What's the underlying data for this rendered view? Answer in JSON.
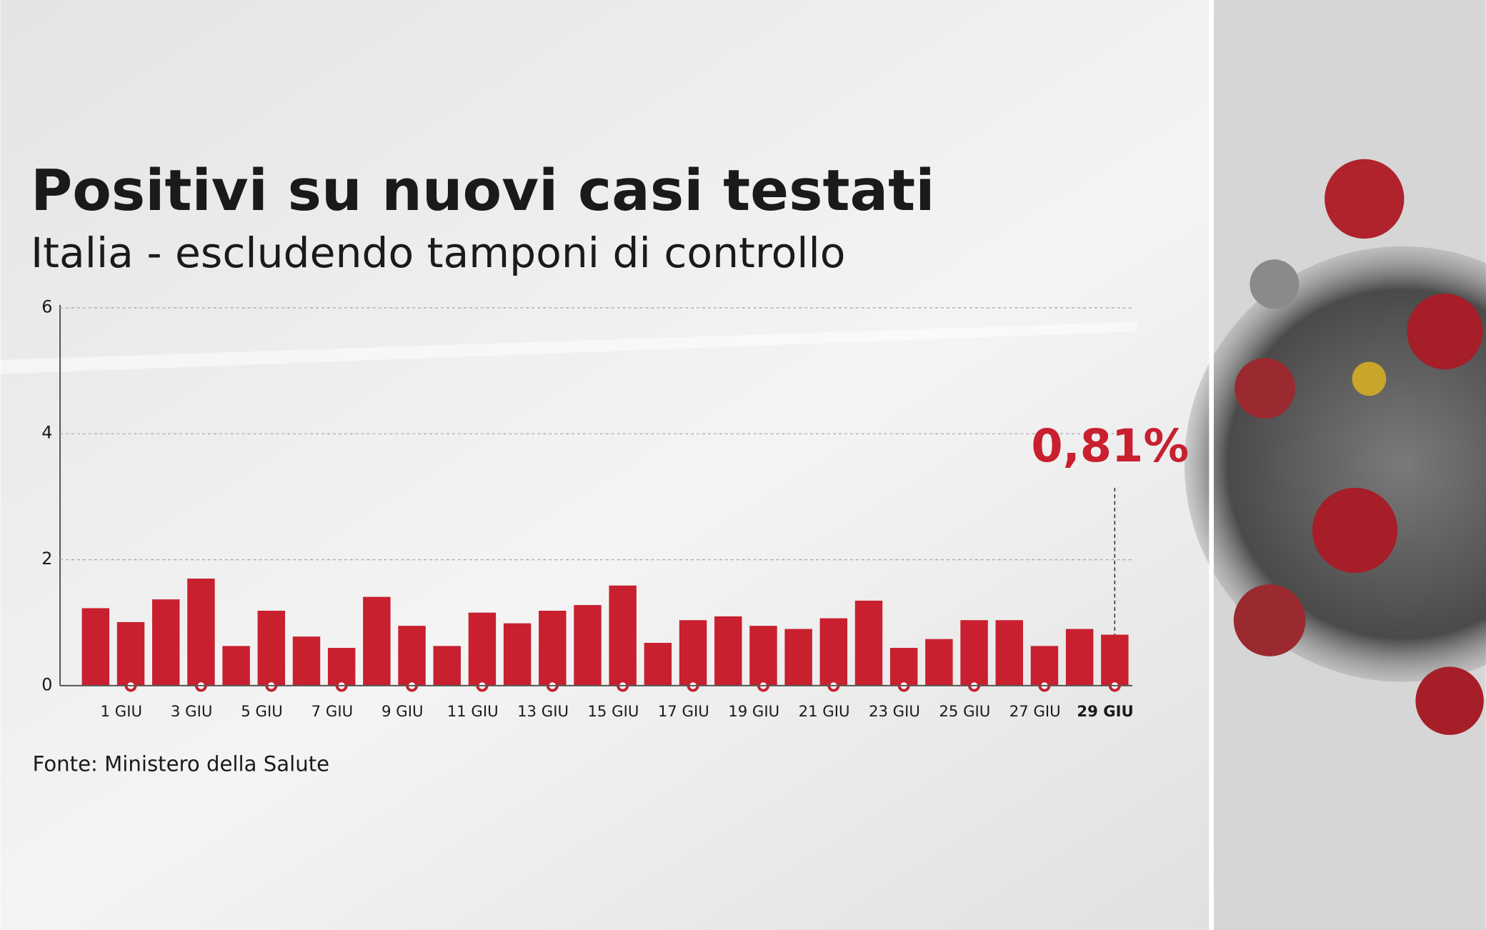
{
  "chart_data": {
    "type": "bar",
    "title": "Positivi su nuovi casi testati",
    "subtitle": "Italia - escludendo tamponi di controllo",
    "source": "Fonte: Ministero della Salute",
    "categories": [
      null,
      "1 GIU",
      null,
      "3 GIU",
      null,
      "5 GIU",
      null,
      "7 GIU",
      null,
      "9 GIU",
      null,
      "11 GIU",
      null,
      "13 GIU",
      null,
      "15 GIU",
      null,
      "17 GIU",
      null,
      "19 GIU",
      null,
      "21 GIU",
      null,
      "23 GIU",
      null,
      "25 GIU",
      null,
      "27 GIU",
      null,
      "29 GIU"
    ],
    "values": [
      1.23,
      1.01,
      1.37,
      1.7,
      0.63,
      1.19,
      0.78,
      0.6,
      1.41,
      0.95,
      0.63,
      1.16,
      0.99,
      1.19,
      1.28,
      1.59,
      0.68,
      1.04,
      1.1,
      0.95,
      0.9,
      1.07,
      1.35,
      0.6,
      0.74,
      1.04,
      1.04,
      0.63,
      0.9,
      0.81
    ],
    "value_labels": [
      null,
      null,
      null,
      null,
      null,
      null,
      null,
      null,
      null,
      null,
      null,
      null,
      null,
      null,
      null,
      null,
      null,
      null,
      null,
      null,
      null,
      null,
      null,
      null,
      null,
      null,
      null,
      null,
      null,
      "0,81%"
    ],
    "color": "#c8202f",
    "ylim": [
      0,
      6
    ],
    "yticks": [
      0,
      2,
      4,
      6
    ],
    "grid": true
  }
}
